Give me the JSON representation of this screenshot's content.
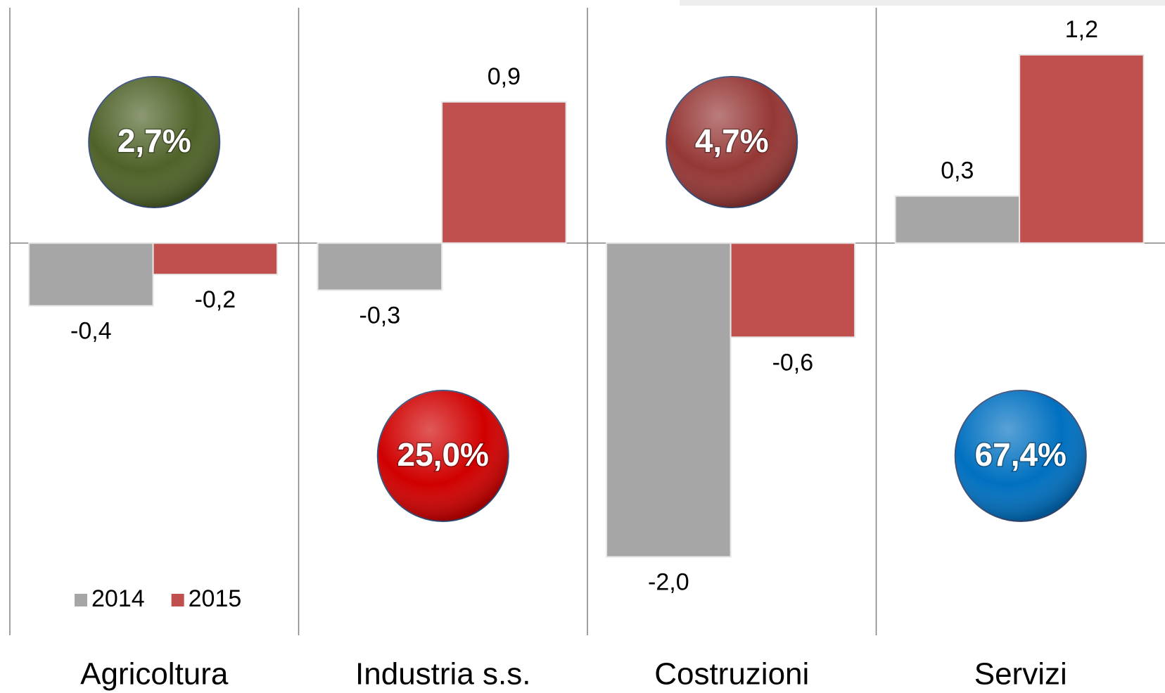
{
  "chart_data": {
    "type": "bar",
    "categories": [
      "Agricoltura",
      "Industria s.s.",
      "Costruzioni",
      "Servizi"
    ],
    "series": [
      {
        "name": "2014",
        "color": "#a6a6a6",
        "values": [
          -0.4,
          -0.3,
          -2.0,
          0.3
        ],
        "value_labels": [
          "-0,4",
          "-0,3",
          "-2,0",
          "0,3"
        ]
      },
      {
        "name": "2015",
        "color": "#c0504d",
        "values": [
          -0.2,
          0.9,
          -0.6,
          1.2
        ],
        "value_labels": [
          "-0,2",
          "0,9",
          "-0,6",
          "1,2"
        ]
      }
    ],
    "ylim": [
      -2.5,
      1.5
    ],
    "legend": "lower left",
    "annotations": [
      {
        "text": "2,7%",
        "color": "#4f6228",
        "placement": "upper"
      },
      {
        "text": "25,0%",
        "color": "#d00000",
        "placement": "lower"
      },
      {
        "text": "4,7%",
        "color": "#953735",
        "placement": "upper"
      },
      {
        "text": "67,4%",
        "color": "#0070c0",
        "placement": "lower"
      }
    ]
  }
}
